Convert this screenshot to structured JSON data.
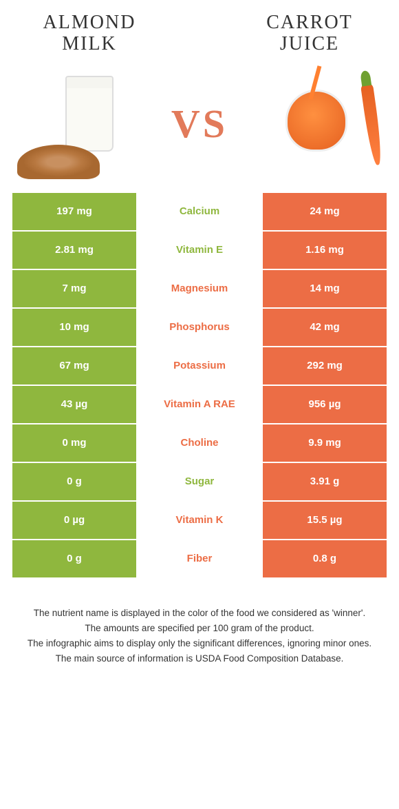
{
  "header": {
    "left_line1": "ALMOND",
    "left_line2": "MILK",
    "right_line1": "CARROT",
    "right_line2": "JUICE"
  },
  "vs_label": "VS",
  "colors": {
    "left": "#8fb73e",
    "right": "#ec6d45",
    "background": "#ffffff"
  },
  "table": {
    "rows": [
      {
        "left": "197 mg",
        "name": "Calcium",
        "right": "24 mg",
        "winner": "left"
      },
      {
        "left": "2.81 mg",
        "name": "Vitamin E",
        "right": "1.16 mg",
        "winner": "left"
      },
      {
        "left": "7 mg",
        "name": "Magnesium",
        "right": "14 mg",
        "winner": "right"
      },
      {
        "left": "10 mg",
        "name": "Phosphorus",
        "right": "42 mg",
        "winner": "right"
      },
      {
        "left": "67 mg",
        "name": "Potassium",
        "right": "292 mg",
        "winner": "right"
      },
      {
        "left": "43 µg",
        "name": "Vitamin A RAE",
        "right": "956 µg",
        "winner": "right"
      },
      {
        "left": "0 mg",
        "name": "Choline",
        "right": "9.9 mg",
        "winner": "right"
      },
      {
        "left": "0 g",
        "name": "Sugar",
        "right": "3.91 g",
        "winner": "left"
      },
      {
        "left": "0 µg",
        "name": "Vitamin K",
        "right": "15.5 µg",
        "winner": "right"
      },
      {
        "left": "0 g",
        "name": "Fiber",
        "right": "0.8 g",
        "winner": "right"
      }
    ]
  },
  "footer": {
    "line1": "The nutrient name is displayed in the color of the food we considered as 'winner'.",
    "line2": "The amounts are specified per 100 gram of the product.",
    "line3": "The infographic aims to display only the significant differences, ignoring minor ones.",
    "line4": "The main source of information is USDA Food Composition Database."
  }
}
